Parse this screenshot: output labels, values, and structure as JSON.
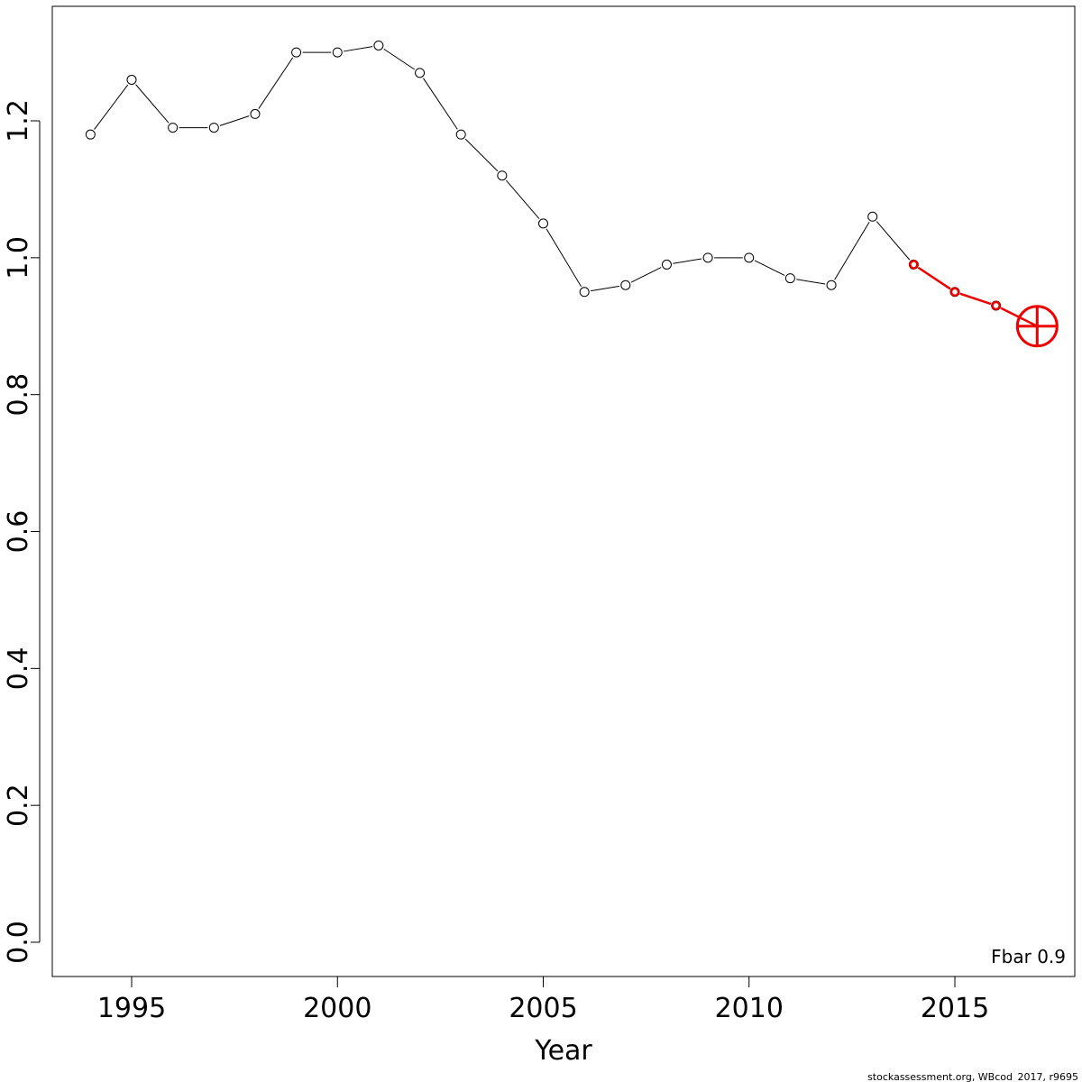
{
  "chart_data": {
    "type": "line",
    "title": "",
    "xlabel": "Year",
    "ylabel": "",
    "xlim": [
      1993.1,
      2017.6
    ],
    "ylim": [
      0,
      1.3
    ],
    "xticks": [
      1995,
      2000,
      2005,
      2010,
      2015
    ],
    "xtick_labels": [
      "1995",
      "2000",
      "2005",
      "2010",
      "2015"
    ],
    "yticks": [
      0,
      0.2,
      0.4,
      0.6,
      0.8,
      1.0,
      1.2
    ],
    "ytick_labels": [
      "0.0",
      "0.2",
      "0.4",
      "0.6",
      "0.8",
      "1.0",
      "1.2"
    ],
    "grid": false,
    "series": [
      {
        "color": "#000000",
        "marker": "open-circle",
        "x": [
          1994,
          1995,
          1996,
          1997,
          1998,
          1999,
          2000,
          2001,
          2002,
          2003,
          2004,
          2005,
          2006,
          2007,
          2008,
          2009,
          2010,
          2011,
          2012,
          2013,
          2014,
          2015,
          2016
        ],
        "values": [
          1.18,
          1.26,
          1.19,
          1.19,
          1.21,
          1.3,
          1.3,
          1.31,
          1.27,
          1.18,
          1.12,
          1.05,
          0.95,
          0.96,
          0.99,
          1.0,
          1.0,
          0.97,
          0.96,
          1.06,
          0.99,
          0.95,
          0.93
        ]
      },
      {
        "color": "#ee0000",
        "marker": "open-circle",
        "x": [
          2014,
          2015,
          2016,
          2017
        ],
        "values": [
          0.99,
          0.95,
          0.93,
          0.9
        ],
        "last_point_marker": "circle-plus"
      }
    ],
    "annotation": "Fbar 0.9",
    "credit": "stockassessment.org, WBcod_2017, r9695"
  }
}
